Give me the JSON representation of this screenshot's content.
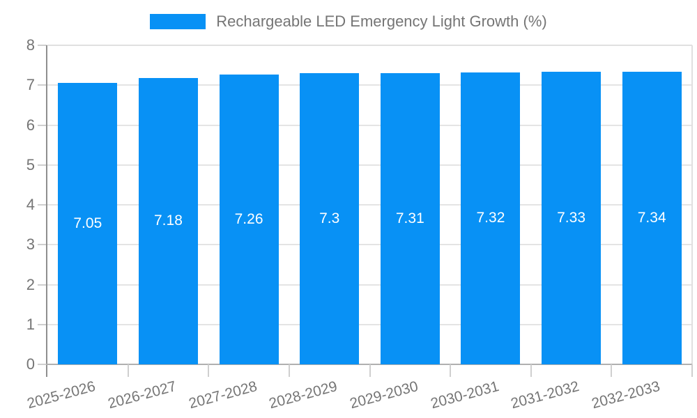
{
  "legend": {
    "label": "Rechargeable LED Emergency Light Growth (%)"
  },
  "colors": {
    "bar": "#0891f5",
    "axis_text": "#757575",
    "value_label_text": "#ffffff",
    "gridline": "#e4e4e4",
    "plot_border": "#e0e0e0",
    "y_axis_line": "#8f8f8f",
    "x_axis_line": "#b0b0b0",
    "tick": "#cfcfcf",
    "background": "#ffffff"
  },
  "chart_data": {
    "type": "bar",
    "title": "Rechargeable LED Emergency Light Growth (%)",
    "categories": [
      "2025-2026",
      "2026-2027",
      "2027-2028",
      "2028-2029",
      "2029-2030",
      "2030-2031",
      "2031-2032",
      "2032-2033"
    ],
    "values": [
      7.05,
      7.18,
      7.26,
      7.3,
      7.31,
      7.32,
      7.33,
      7.34
    ],
    "value_labels": [
      "7.05",
      "7.18",
      "7.26",
      "7.3",
      "7.31",
      "7.32",
      "7.33",
      "7.34"
    ],
    "xlabel": "",
    "ylabel": "",
    "ylim": [
      0,
      8
    ],
    "yticks": [
      0,
      1,
      2,
      3,
      4,
      5,
      6,
      7,
      8
    ],
    "grid": true,
    "legend_position": "top-center",
    "x_label_rotation_deg": -15,
    "value_label_position": "inside-center"
  }
}
